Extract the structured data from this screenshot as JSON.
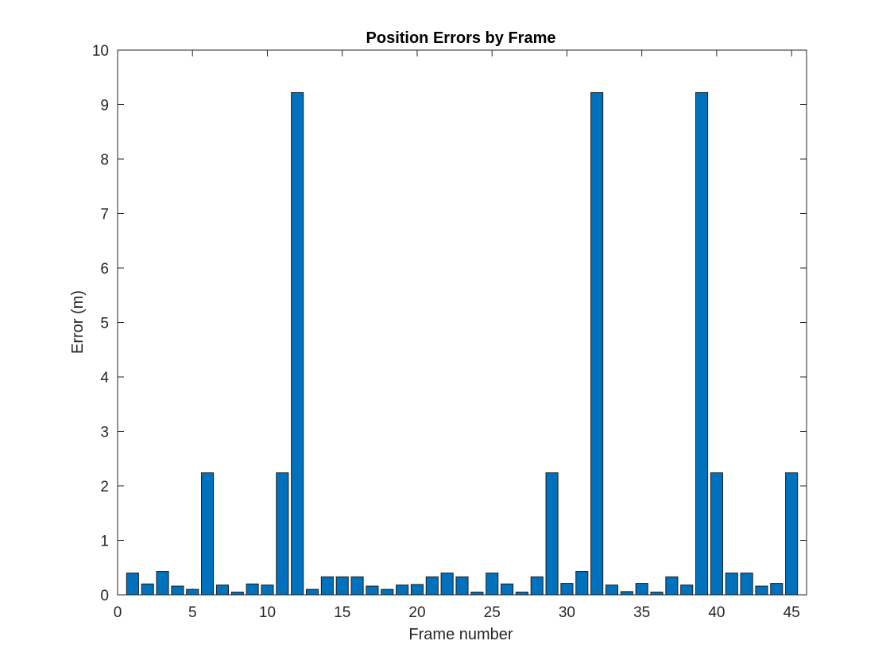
{
  "chart_data": {
    "type": "bar",
    "title": "Position Errors by Frame",
    "xlabel": "Frame number",
    "ylabel": "Error (m)",
    "xlim": [
      0,
      46
    ],
    "ylim": [
      0,
      10
    ],
    "xticks": [
      0,
      5,
      10,
      15,
      20,
      25,
      30,
      35,
      40,
      45
    ],
    "yticks": [
      0,
      1,
      2,
      3,
      4,
      5,
      6,
      7,
      8,
      9,
      10
    ],
    "grid": false,
    "bar_color": "#0072BD",
    "categories": [
      1,
      2,
      3,
      4,
      5,
      6,
      7,
      8,
      9,
      10,
      11,
      12,
      13,
      14,
      15,
      16,
      17,
      18,
      19,
      20,
      21,
      22,
      23,
      24,
      25,
      26,
      27,
      28,
      29,
      30,
      31,
      32,
      33,
      34,
      35,
      36,
      37,
      38,
      39,
      40,
      41,
      42,
      43,
      44,
      45
    ],
    "values": [
      0.4,
      0.2,
      0.43,
      0.16,
      0.1,
      2.24,
      0.18,
      0.05,
      0.2,
      0.18,
      2.24,
      9.22,
      0.1,
      0.33,
      0.33,
      0.33,
      0.16,
      0.1,
      0.18,
      0.19,
      0.33,
      0.4,
      0.33,
      0.05,
      0.4,
      0.2,
      0.05,
      0.33,
      2.24,
      0.21,
      0.43,
      9.22,
      0.18,
      0.06,
      0.21,
      0.05,
      0.33,
      0.18,
      9.22,
      2.24,
      0.4,
      0.4,
      0.16,
      0.21,
      2.24
    ]
  }
}
